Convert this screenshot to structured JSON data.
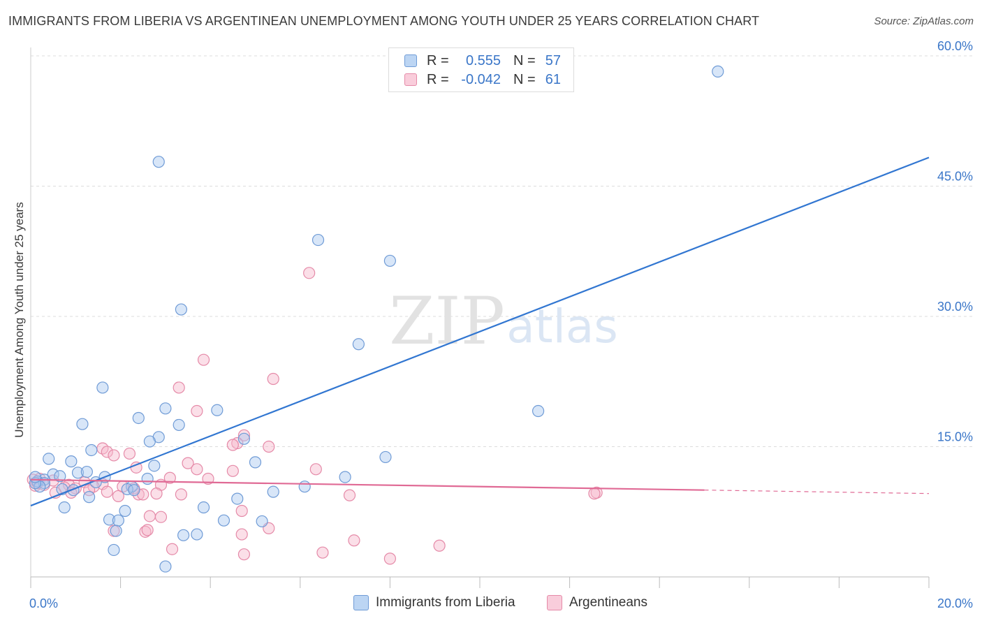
{
  "title": "IMMIGRANTS FROM LIBERIA VS ARGENTINEAN UNEMPLOYMENT AMONG YOUTH UNDER 25 YEARS CORRELATION CHART",
  "source": "Source: ZipAtlas.com",
  "watermark": {
    "zip": "ZIP",
    "atlas": "atlas"
  },
  "colors": {
    "blue_fill": "#a9c8f0",
    "blue_stroke": "#6f9bd6",
    "blue_line": "#3176d1",
    "pink_fill": "#f6b8cb",
    "pink_stroke": "#e58aa8",
    "pink_line": "#e06a95",
    "value_text": "#3a76c8",
    "grid": "#dddddd"
  },
  "legend_top": [
    {
      "name": "Immigrants from Liberia",
      "r_label": "R =",
      "r_value": "0.555",
      "n_label": "N =",
      "n_value": "57"
    },
    {
      "name": "Argentineans",
      "r_label": "R =",
      "r_value": "-0.042",
      "n_label": "N =",
      "n_value": "61"
    }
  ],
  "chart_data": {
    "type": "scatter",
    "title": "IMMIGRANTS FROM LIBERIA VS ARGENTINEAN UNEMPLOYMENT AMONG YOUTH UNDER 25 YEARS CORRELATION CHART",
    "xlabel": "",
    "ylabel": "Unemployment Among Youth under 25 years",
    "xlim": [
      0,
      20
    ],
    "ylim": [
      0,
      60
    ],
    "x_tick_labels": [
      "0.0%",
      "20.0%"
    ],
    "y_ticks": [
      15,
      30,
      45,
      60
    ],
    "y_tick_labels": [
      "15.0%",
      "30.0%",
      "45.0%",
      "60.0%"
    ],
    "legend": [
      "Immigrants from Liberia",
      "Argentineans"
    ],
    "series": [
      {
        "name": "Immigrants from Liberia",
        "trend": {
          "x": [
            0,
            20
          ],
          "y": [
            8.2,
            48.3
          ],
          "dashed_from": null
        },
        "points": [
          {
            "x": 15.3,
            "y": 58.2
          },
          {
            "x": 2.85,
            "y": 47.8
          },
          {
            "x": 6.4,
            "y": 38.8
          },
          {
            "x": 8.0,
            "y": 36.4
          },
          {
            "x": 3.35,
            "y": 30.8
          },
          {
            "x": 7.3,
            "y": 26.8
          },
          {
            "x": 1.6,
            "y": 21.8
          },
          {
            "x": 3.0,
            "y": 19.4
          },
          {
            "x": 4.15,
            "y": 19.2
          },
          {
            "x": 11.3,
            "y": 19.1
          },
          {
            "x": 2.4,
            "y": 18.3
          },
          {
            "x": 1.15,
            "y": 17.6
          },
          {
            "x": 3.3,
            "y": 17.5
          },
          {
            "x": 2.85,
            "y": 16.1
          },
          {
            "x": 2.65,
            "y": 15.6
          },
          {
            "x": 1.35,
            "y": 14.6
          },
          {
            "x": 4.75,
            "y": 15.9
          },
          {
            "x": 7.9,
            "y": 13.8
          },
          {
            "x": 0.4,
            "y": 13.6
          },
          {
            "x": 0.9,
            "y": 13.3
          },
          {
            "x": 5.0,
            "y": 13.2
          },
          {
            "x": 2.75,
            "y": 12.8
          },
          {
            "x": 1.05,
            "y": 12.0
          },
          {
            "x": 1.25,
            "y": 12.1
          },
          {
            "x": 0.5,
            "y": 11.8
          },
          {
            "x": 1.65,
            "y": 11.5
          },
          {
            "x": 7.0,
            "y": 11.5
          },
          {
            "x": 2.6,
            "y": 11.3
          },
          {
            "x": 0.3,
            "y": 11.2
          },
          {
            "x": 0.65,
            "y": 11.6
          },
          {
            "x": 0.15,
            "y": 11.0
          },
          {
            "x": 0.3,
            "y": 10.8
          },
          {
            "x": 1.45,
            "y": 10.9
          },
          {
            "x": 0.2,
            "y": 10.4
          },
          {
            "x": 0.1,
            "y": 10.8
          },
          {
            "x": 2.25,
            "y": 10.4
          },
          {
            "x": 6.1,
            "y": 10.4
          },
          {
            "x": 0.95,
            "y": 10.0
          },
          {
            "x": 0.7,
            "y": 10.1
          },
          {
            "x": 2.15,
            "y": 10.1
          },
          {
            "x": 2.3,
            "y": 10.0
          },
          {
            "x": 5.4,
            "y": 9.8
          },
          {
            "x": 1.3,
            "y": 9.2
          },
          {
            "x": 4.6,
            "y": 9.0
          },
          {
            "x": 0.75,
            "y": 8.0
          },
          {
            "x": 3.85,
            "y": 8.0
          },
          {
            "x": 2.1,
            "y": 7.6
          },
          {
            "x": 1.75,
            "y": 6.6
          },
          {
            "x": 1.95,
            "y": 6.5
          },
          {
            "x": 4.3,
            "y": 6.5
          },
          {
            "x": 5.15,
            "y": 6.4
          },
          {
            "x": 1.9,
            "y": 5.3
          },
          {
            "x": 3.7,
            "y": 4.9
          },
          {
            "x": 3.4,
            "y": 4.8
          },
          {
            "x": 1.85,
            "y": 3.1
          },
          {
            "x": 3.0,
            "y": 1.2
          },
          {
            "x": 0.1,
            "y": 11.5
          }
        ]
      },
      {
        "name": "Argentineans",
        "trend": {
          "x": [
            0,
            20
          ],
          "y": [
            11.2,
            9.6
          ],
          "dashed_from": 15.0
        },
        "points": [
          {
            "x": 6.2,
            "y": 35.0
          },
          {
            "x": 3.85,
            "y": 25.0
          },
          {
            "x": 5.4,
            "y": 22.8
          },
          {
            "x": 3.3,
            "y": 21.8
          },
          {
            "x": 3.7,
            "y": 19.1
          },
          {
            "x": 4.75,
            "y": 16.3
          },
          {
            "x": 4.6,
            "y": 15.4
          },
          {
            "x": 4.5,
            "y": 15.2
          },
          {
            "x": 5.3,
            "y": 15.0
          },
          {
            "x": 1.6,
            "y": 14.8
          },
          {
            "x": 1.7,
            "y": 14.4
          },
          {
            "x": 2.2,
            "y": 14.2
          },
          {
            "x": 1.85,
            "y": 14.0
          },
          {
            "x": 3.5,
            "y": 13.1
          },
          {
            "x": 2.35,
            "y": 12.6
          },
          {
            "x": 3.7,
            "y": 12.4
          },
          {
            "x": 4.5,
            "y": 12.2
          },
          {
            "x": 6.35,
            "y": 12.4
          },
          {
            "x": 3.1,
            "y": 11.4
          },
          {
            "x": 3.95,
            "y": 11.3
          },
          {
            "x": 0.2,
            "y": 11.3
          },
          {
            "x": 0.5,
            "y": 11.1
          },
          {
            "x": 1.2,
            "y": 10.9
          },
          {
            "x": 0.85,
            "y": 10.6
          },
          {
            "x": 1.6,
            "y": 10.7
          },
          {
            "x": 2.9,
            "y": 10.6
          },
          {
            "x": 0.05,
            "y": 11.2
          },
          {
            "x": 0.1,
            "y": 10.5
          },
          {
            "x": 0.3,
            "y": 10.6
          },
          {
            "x": 0.75,
            "y": 10.3
          },
          {
            "x": 1.0,
            "y": 10.2
          },
          {
            "x": 1.4,
            "y": 10.4
          },
          {
            "x": 2.05,
            "y": 10.4
          },
          {
            "x": 2.3,
            "y": 10.2
          },
          {
            "x": 1.3,
            "y": 10.0
          },
          {
            "x": 1.7,
            "y": 9.8
          },
          {
            "x": 0.9,
            "y": 9.7
          },
          {
            "x": 0.55,
            "y": 9.7
          },
          {
            "x": 2.4,
            "y": 9.5
          },
          {
            "x": 2.5,
            "y": 9.5
          },
          {
            "x": 3.35,
            "y": 9.5
          },
          {
            "x": 2.8,
            "y": 9.6
          },
          {
            "x": 1.95,
            "y": 9.3
          },
          {
            "x": 7.1,
            "y": 9.4
          },
          {
            "x": 12.6,
            "y": 9.7
          },
          {
            "x": 12.55,
            "y": 9.6
          },
          {
            "x": 4.7,
            "y": 7.6
          },
          {
            "x": 2.65,
            "y": 7.0
          },
          {
            "x": 2.9,
            "y": 6.9
          },
          {
            "x": 5.3,
            "y": 5.6
          },
          {
            "x": 1.85,
            "y": 5.3
          },
          {
            "x": 2.55,
            "y": 5.2
          },
          {
            "x": 2.6,
            "y": 5.4
          },
          {
            "x": 4.7,
            "y": 4.9
          },
          {
            "x": 7.2,
            "y": 4.2
          },
          {
            "x": 9.1,
            "y": 3.6
          },
          {
            "x": 3.15,
            "y": 3.2
          },
          {
            "x": 6.5,
            "y": 2.8
          },
          {
            "x": 4.75,
            "y": 2.6
          },
          {
            "x": 8.0,
            "y": 2.1
          },
          {
            "x": 0.15,
            "y": 10.8
          }
        ]
      }
    ]
  }
}
